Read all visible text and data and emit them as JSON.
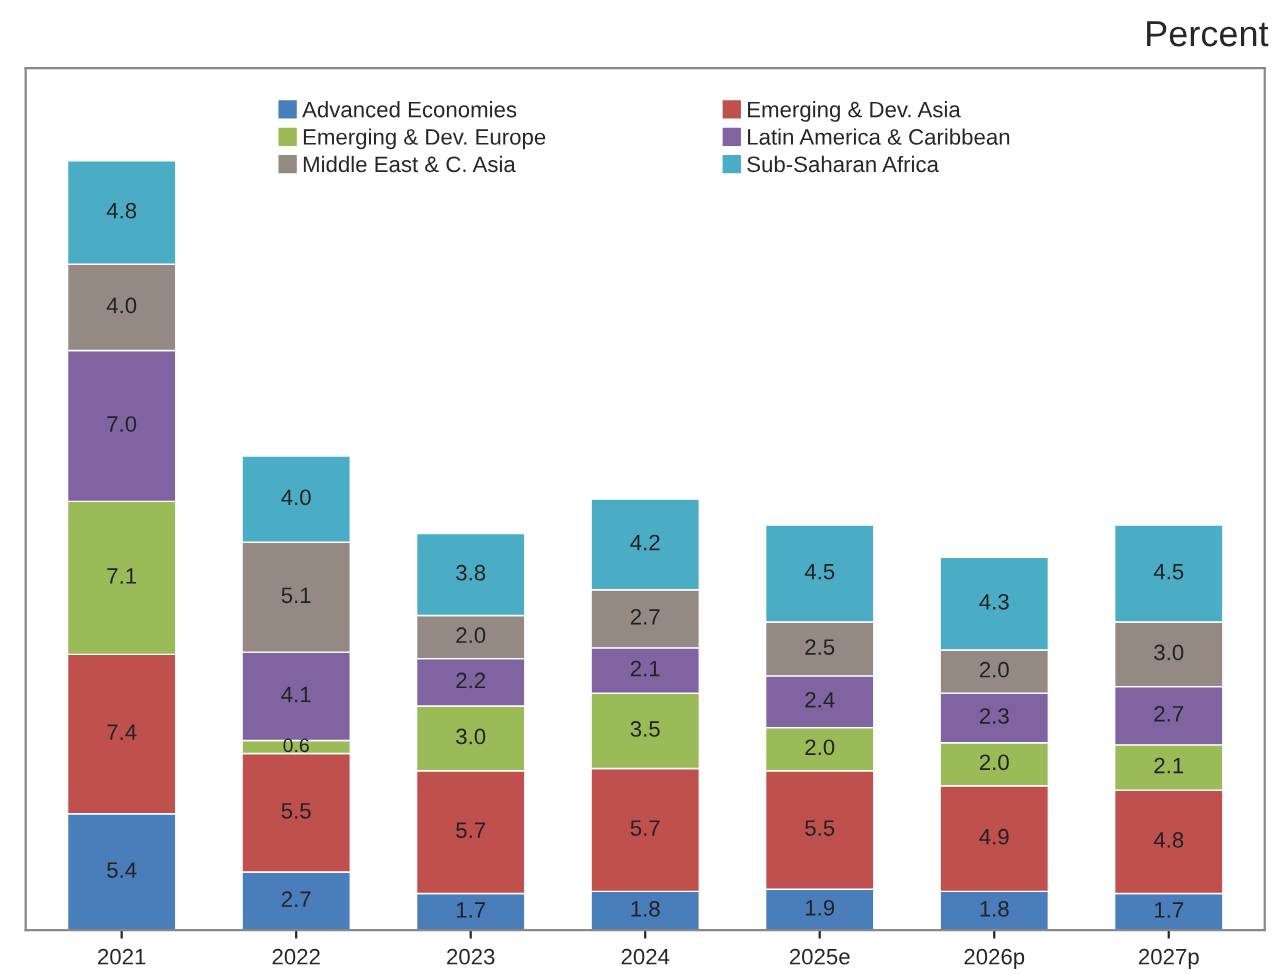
{
  "chart_data": {
    "type": "bar",
    "stacked": true,
    "subtitle": "Percent",
    "categories": [
      "2021",
      "2022",
      "2023",
      "2024",
      "2025e",
      "2026p",
      "2027p"
    ],
    "series": [
      {
        "name": "Advanced Economies",
        "color": "#4a7ebb",
        "values": [
          5.4,
          2.7,
          1.7,
          1.8,
          1.9,
          1.8,
          1.7
        ],
        "value_labels": [
          "5.4",
          "2.7",
          "1.7",
          "1.8",
          "1.9",
          "1.8",
          "1.7"
        ]
      },
      {
        "name": "Emerging & Dev. Asia",
        "color": "#c0504d",
        "values": [
          7.4,
          5.5,
          5.7,
          5.7,
          5.5,
          4.9,
          4.8
        ],
        "value_labels": [
          "7.4",
          "5.5",
          "5.7",
          "5.7",
          "5.5",
          "4.9",
          "4.8"
        ]
      },
      {
        "name": "Emerging & Dev. Europe",
        "color": "#9bbb59",
        "values": [
          7.1,
          0.6,
          3.0,
          3.5,
          2.0,
          2.0,
          2.1
        ],
        "value_labels": [
          "7.1",
          "0.6",
          "3.0",
          "3.5",
          "2.0",
          "2.0",
          "2.1"
        ]
      },
      {
        "name": "Latin America & Caribbean",
        "color": "#8064a2",
        "values": [
          7.0,
          4.1,
          2.2,
          2.1,
          2.4,
          2.3,
          2.7
        ],
        "value_labels": [
          "7.0",
          "4.1",
          "2.2",
          "2.1",
          "2.4",
          "2.3",
          "2.7"
        ]
      },
      {
        "name": "Middle East & C. Asia",
        "color": "#948a83",
        "values": [
          4.0,
          5.1,
          2.0,
          2.7,
          2.5,
          2.0,
          3.0
        ],
        "value_labels": [
          "4.0",
          "5.1",
          "2.0",
          "2.7",
          "2.5",
          "2.0",
          "3.0"
        ]
      },
      {
        "name": "Sub-Saharan Africa",
        "color": "#4bacc6",
        "values": [
          4.8,
          4.0,
          3.8,
          4.2,
          4.5,
          4.3,
          4.5
        ],
        "value_labels": [
          "4.8",
          "4.0",
          "3.8",
          "4.2",
          "4.5",
          "4.3",
          "4.5"
        ]
      }
    ],
    "ylim": [
      0,
      40
    ],
    "legend": "top",
    "grid": false,
    "tick_labels": "x"
  }
}
